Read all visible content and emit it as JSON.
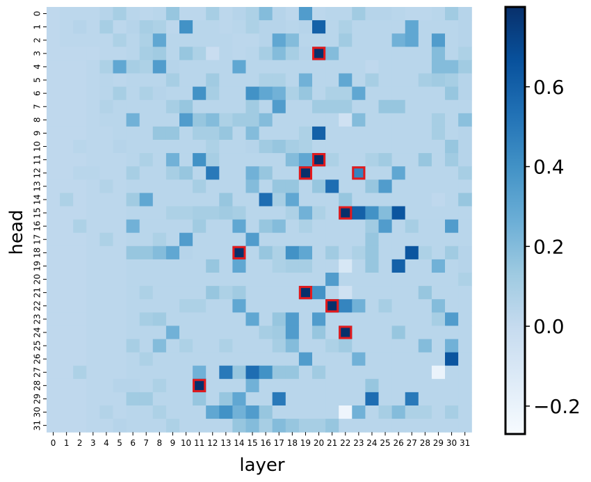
{
  "chart_data": {
    "type": "heatmap",
    "xlabel": "layer",
    "ylabel": "head",
    "x_ticks": [
      "0",
      "1",
      "2",
      "3",
      "4",
      "5",
      "6",
      "7",
      "8",
      "9",
      "10",
      "11",
      "12",
      "13",
      "14",
      "15",
      "16",
      "17",
      "18",
      "19",
      "20",
      "21",
      "22",
      "23",
      "24",
      "25",
      "26",
      "27",
      "28",
      "29",
      "30",
      "31"
    ],
    "y_ticks": [
      "0",
      "1",
      "2",
      "3",
      "4",
      "5",
      "6",
      "7",
      "8",
      "9",
      "10",
      "11",
      "12",
      "13",
      "14",
      "15",
      "16",
      "17",
      "18",
      "19",
      "20",
      "21",
      "22",
      "23",
      "24",
      "25",
      "26",
      "27",
      "28",
      "29",
      "30",
      "31"
    ],
    "colorscale": "Blues",
    "vmin": -0.27,
    "vmax": 0.8,
    "colorbar_ticks": [
      "−0.2",
      "0.0",
      "0.2",
      "0.4",
      "0.6"
    ],
    "colorbar_tick_values": [
      -0.2,
      0.0,
      0.2,
      0.4,
      0.6
    ],
    "values": [
      [
        0.02,
        0.03,
        0.03,
        0.03,
        0.05,
        0.1,
        0.04,
        0.03,
        0.04,
        0.15,
        0.03,
        0.03,
        0.1,
        0.03,
        0.05,
        0.08,
        0.2,
        0.05,
        0.03,
        0.35,
        0.03,
        0.04,
        0.04,
        0.12,
        0.05,
        0.05,
        0.04,
        0.03,
        0.03,
        0.04,
        0.12,
        0.05
      ],
      [
        0.02,
        0.03,
        0.05,
        0.03,
        0.1,
        0.03,
        0.05,
        0.1,
        0.08,
        0.03,
        0.4,
        0.04,
        0.04,
        0.03,
        0.04,
        0.08,
        0.05,
        0.05,
        0.04,
        0.05,
        0.6,
        0.04,
        0.08,
        0.04,
        0.04,
        0.04,
        0.04,
        0.3,
        0.04,
        0.04,
        0.04,
        0.05
      ],
      [
        0.02,
        0.03,
        0.03,
        0.03,
        0.03,
        0.08,
        0.04,
        0.08,
        0.3,
        0.04,
        0.04,
        0.04,
        0.04,
        0.04,
        0.03,
        0.03,
        0.05,
        0.3,
        0.2,
        0.04,
        0.04,
        0.04,
        0.12,
        0.04,
        0.04,
        0.04,
        0.25,
        0.3,
        0.04,
        0.35,
        0.04,
        0.05
      ],
      [
        0.02,
        0.02,
        0.02,
        0.02,
        0.03,
        0.03,
        0.04,
        0.1,
        0.12,
        0.04,
        0.15,
        0.08,
        -0.02,
        0.04,
        0.03,
        0.04,
        0.1,
        0.2,
        0.1,
        0.05,
        0.8,
        0.2,
        0.04,
        0.04,
        0.04,
        0.04,
        0.04,
        0.04,
        0.04,
        0.2,
        0.04,
        0.08
      ],
      [
        0.02,
        0.02,
        0.02,
        0.03,
        0.08,
        0.3,
        0.1,
        0.08,
        0.35,
        0.05,
        0.04,
        0.04,
        0.04,
        0.04,
        0.3,
        0.04,
        0.04,
        0.04,
        0.04,
        0.04,
        0.04,
        0.04,
        0.04,
        0.04,
        0.02,
        0.04,
        0.04,
        0.04,
        0.04,
        0.2,
        0.2,
        0.12
      ],
      [
        0.02,
        0.02,
        0.02,
        0.03,
        0.04,
        0.03,
        0.04,
        0.04,
        0.04,
        0.1,
        0.04,
        0.04,
        0.12,
        0.04,
        0.04,
        0.04,
        0.08,
        0.08,
        0.04,
        0.25,
        0.04,
        0.04,
        0.3,
        0.04,
        0.1,
        0.04,
        0.04,
        0.04,
        0.1,
        0.12,
        0.1,
        0.05
      ],
      [
        0.02,
        0.02,
        0.02,
        0.03,
        0.04,
        0.1,
        0.04,
        0.08,
        0.05,
        0.04,
        0.04,
        0.4,
        0.1,
        0.04,
        0.04,
        0.4,
        0.3,
        0.25,
        0.08,
        0.15,
        0.04,
        0.08,
        0.08,
        0.3,
        0.04,
        0.04,
        0.04,
        0.04,
        0.04,
        0.04,
        0.15,
        0.05
      ],
      [
        0.02,
        0.02,
        0.02,
        0.03,
        0.06,
        0.04,
        0.04,
        0.04,
        0.04,
        0.1,
        0.15,
        0.04,
        0.04,
        0.04,
        0.04,
        0.12,
        0.04,
        0.35,
        0.04,
        0.04,
        0.12,
        0.12,
        0.12,
        0.04,
        0.04,
        0.15,
        0.15,
        0.04,
        0.04,
        0.04,
        0.04,
        0.04
      ],
      [
        0.02,
        0.02,
        0.02,
        0.03,
        0.04,
        0.04,
        0.25,
        0.04,
        0.04,
        0.04,
        0.35,
        0.15,
        0.2,
        0.08,
        0.12,
        0.12,
        0.2,
        0.04,
        0.04,
        0.04,
        0.04,
        0.04,
        -0.05,
        0.2,
        0.04,
        0.04,
        0.04,
        0.04,
        0.04,
        0.1,
        0.04,
        0.18
      ],
      [
        0.02,
        0.02,
        0.02,
        0.03,
        0.03,
        0.04,
        0.04,
        0.04,
        0.15,
        0.15,
        0.04,
        0.1,
        0.1,
        0.15,
        0.04,
        0.2,
        0.04,
        0.04,
        0.04,
        0.08,
        0.6,
        0.04,
        0.04,
        0.04,
        0.04,
        0.04,
        0.04,
        0.04,
        0.04,
        0.1,
        0.04,
        0.05
      ],
      [
        0.02,
        0.02,
        0.04,
        0.03,
        0.03,
        0.05,
        0.04,
        0.04,
        0.04,
        0.04,
        0.04,
        0.04,
        0.08,
        0.04,
        0.04,
        0.05,
        0.12,
        0.15,
        0.1,
        0.08,
        0.04,
        0.04,
        0.04,
        0.04,
        0.04,
        0.04,
        0.04,
        0.04,
        0.04,
        0.04,
        0.15,
        0.05
      ],
      [
        0.02,
        0.02,
        0.02,
        0.03,
        0.03,
        0.03,
        0.04,
        0.08,
        0.04,
        0.25,
        0.04,
        0.4,
        0.1,
        0.04,
        0.04,
        0.04,
        0.04,
        0.04,
        0.2,
        0.3,
        0.8,
        0.08,
        0.04,
        0.04,
        0.08,
        0.12,
        0.04,
        0.04,
        0.15,
        0.04,
        0.12,
        0.05
      ],
      [
        0.02,
        0.02,
        0.04,
        0.04,
        0.03,
        0.03,
        0.1,
        0.04,
        0.04,
        0.1,
        0.15,
        0.04,
        0.5,
        0.04,
        0.04,
        0.25,
        0.15,
        0.04,
        0.04,
        0.8,
        0.04,
        0.04,
        0.04,
        0.45,
        0.04,
        0.04,
        0.3,
        0.04,
        0.04,
        0.04,
        0.04,
        0.1
      ],
      [
        0.02,
        0.02,
        0.02,
        0.03,
        0.06,
        0.03,
        0.04,
        0.04,
        0.04,
        0.04,
        0.04,
        0.1,
        0.04,
        0.04,
        0.04,
        0.2,
        0.04,
        0.15,
        0.15,
        0.04,
        0.15,
        0.55,
        0.04,
        0.04,
        0.15,
        0.35,
        0.04,
        0.04,
        0.04,
        0.04,
        0.04,
        0.04
      ],
      [
        0.02,
        0.08,
        0.02,
        0.03,
        0.03,
        0.03,
        0.12,
        0.3,
        0.04,
        0.04,
        0.04,
        0.04,
        0.04,
        0.15,
        0.04,
        0.04,
        0.55,
        0.1,
        0.3,
        0.04,
        0.04,
        0.04,
        0.15,
        0.04,
        0.04,
        0.04,
        0.04,
        0.04,
        0.04,
        0.02,
        0.04,
        0.15
      ],
      [
        0.02,
        0.02,
        0.02,
        0.03,
        0.03,
        0.03,
        0.04,
        0.04,
        0.04,
        0.08,
        0.08,
        0.1,
        0.1,
        0.12,
        0.1,
        0.04,
        0.04,
        0.04,
        0.08,
        0.25,
        0.08,
        0.04,
        0.8,
        0.6,
        0.4,
        0.2,
        0.65,
        0.04,
        0.04,
        0.04,
        0.04,
        0.04
      ],
      [
        0.02,
        0.02,
        0.08,
        0.03,
        0.03,
        0.03,
        0.25,
        0.04,
        0.04,
        0.04,
        0.04,
        0.12,
        0.04,
        0.04,
        0.3,
        0.04,
        0.15,
        0.2,
        0.04,
        0.08,
        0.04,
        0.04,
        0.04,
        0.04,
        0.12,
        0.35,
        0.04,
        0.1,
        0.04,
        0.04,
        0.35,
        0.04
      ],
      [
        0.02,
        0.02,
        0.02,
        0.03,
        0.08,
        0.03,
        0.04,
        0.04,
        0.08,
        0.04,
        0.35,
        0.04,
        0.04,
        0.04,
        0.04,
        0.35,
        0.04,
        0.04,
        0.04,
        0.04,
        0.04,
        0.04,
        0.04,
        0.04,
        0.15,
        0.04,
        0.04,
        0.04,
        0.04,
        0.04,
        0.04,
        0.04
      ],
      [
        0.02,
        0.02,
        0.02,
        0.03,
        0.03,
        0.03,
        0.15,
        0.15,
        0.2,
        0.3,
        0.05,
        0.04,
        0.04,
        0.04,
        0.8,
        0.04,
        0.15,
        0.08,
        0.4,
        0.3,
        0.04,
        0.12,
        0.04,
        0.08,
        0.15,
        0.04,
        0.04,
        0.65,
        0.08,
        0.04,
        0.12,
        0.05
      ],
      [
        0.02,
        0.02,
        0.02,
        0.03,
        0.03,
        0.03,
        0.04,
        0.04,
        0.04,
        0.04,
        0.04,
        0.04,
        0.15,
        0.04,
        0.3,
        0.04,
        0.04,
        0.08,
        0.1,
        0.1,
        0.04,
        0.04,
        -0.1,
        0.04,
        0.15,
        0.04,
        0.6,
        0.04,
        0.04,
        0.25,
        0.04,
        0.05
      ],
      [
        0.02,
        0.02,
        0.02,
        0.03,
        0.03,
        0.03,
        0.04,
        0.04,
        0.04,
        0.04,
        0.04,
        0.04,
        0.04,
        0.04,
        0.04,
        0.04,
        0.04,
        0.04,
        0.04,
        0.04,
        0.04,
        0.35,
        0.04,
        0.04,
        0.04,
        0.04,
        0.04,
        0.04,
        0.04,
        0.04,
        0.04,
        0.08
      ],
      [
        0.02,
        0.02,
        0.02,
        0.03,
        0.03,
        0.03,
        0.04,
        0.08,
        0.04,
        0.04,
        0.04,
        0.04,
        0.15,
        0.08,
        0.12,
        0.04,
        0.04,
        0.04,
        0.04,
        0.8,
        0.4,
        0.04,
        -0.05,
        0.04,
        0.04,
        0.04,
        0.04,
        0.04,
        0.15,
        0.04,
        0.04,
        0.04
      ],
      [
        0.02,
        0.02,
        0.02,
        0.03,
        0.03,
        0.03,
        0.04,
        0.04,
        0.04,
        0.04,
        0.08,
        0.08,
        0.04,
        0.04,
        0.3,
        0.04,
        0.04,
        0.04,
        0.04,
        0.04,
        0.04,
        0.8,
        0.45,
        0.25,
        0.04,
        0.1,
        0.04,
        0.04,
        0.04,
        0.2,
        0.04,
        0.04
      ],
      [
        0.02,
        0.02,
        0.02,
        0.03,
        0.03,
        0.03,
        0.04,
        0.1,
        0.12,
        0.04,
        0.04,
        0.04,
        0.04,
        0.04,
        0.04,
        0.3,
        0.04,
        0.15,
        0.35,
        0.04,
        0.35,
        0.04,
        0.04,
        0.04,
        0.04,
        0.04,
        0.04,
        0.04,
        0.04,
        0.1,
        0.35,
        0.04
      ],
      [
        0.02,
        0.02,
        0.02,
        0.03,
        0.03,
        0.03,
        0.04,
        0.04,
        0.04,
        0.25,
        0.04,
        0.04,
        0.04,
        0.04,
        0.04,
        0.04,
        0.1,
        0.12,
        0.35,
        0.04,
        0.15,
        0.04,
        0.8,
        0.04,
        0.04,
        0.04,
        0.15,
        0.04,
        0.04,
        0.04,
        0.04,
        0.04
      ],
      [
        0.02,
        0.02,
        0.02,
        0.03,
        0.03,
        0.03,
        0.1,
        0.04,
        0.2,
        0.04,
        0.08,
        0.04,
        0.04,
        0.08,
        0.04,
        0.04,
        0.04,
        0.1,
        0.2,
        0.04,
        0.04,
        0.08,
        0.12,
        0.04,
        0.04,
        0.04,
        0.04,
        0.04,
        0.2,
        0.04,
        0.25,
        0.04
      ],
      [
        0.02,
        0.02,
        0.02,
        0.03,
        0.03,
        0.03,
        0.04,
        0.08,
        0.04,
        0.04,
        0.04,
        0.04,
        0.04,
        0.04,
        0.04,
        0.04,
        0.04,
        0.04,
        0.04,
        0.35,
        0.04,
        0.04,
        0.04,
        0.25,
        0.04,
        0.04,
        0.04,
        0.04,
        0.04,
        0.04,
        0.65,
        0.04
      ],
      [
        0.02,
        0.02,
        0.08,
        0.03,
        0.03,
        0.03,
        0.04,
        0.04,
        0.04,
        0.04,
        0.04,
        0.25,
        0.04,
        0.5,
        0.15,
        0.55,
        0.4,
        0.15,
        0.15,
        0.04,
        0.12,
        0.04,
        0.04,
        0.04,
        0.04,
        0.04,
        0.04,
        0.04,
        0.04,
        -0.2,
        0.04,
        0.04
      ],
      [
        0.02,
        0.02,
        0.02,
        0.03,
        0.03,
        0.05,
        0.05,
        0.04,
        0.08,
        0.04,
        0.04,
        0.8,
        0.04,
        0.04,
        0.04,
        0.25,
        0.04,
        0.04,
        0.04,
        0.04,
        0.04,
        0.04,
        0.04,
        0.04,
        0.15,
        0.04,
        0.04,
        0.04,
        0.04,
        0.04,
        0.04,
        0.04
      ],
      [
        0.02,
        0.02,
        0.02,
        0.03,
        0.03,
        0.03,
        0.12,
        0.12,
        0.04,
        0.04,
        0.04,
        0.15,
        0.04,
        0.15,
        0.3,
        0.04,
        0.04,
        0.5,
        0.04,
        0.04,
        0.04,
        0.04,
        0.04,
        0.04,
        0.55,
        0.04,
        0.04,
        0.5,
        0.04,
        0.04,
        0.04,
        0.04
      ],
      [
        0.02,
        0.02,
        0.02,
        0.03,
        0.06,
        0.03,
        0.04,
        0.04,
        0.08,
        0.04,
        0.04,
        0.04,
        0.3,
        0.4,
        0.25,
        0.35,
        0.15,
        0.04,
        0.04,
        0.04,
        0.04,
        0.04,
        -0.22,
        0.25,
        0.04,
        0.1,
        0.2,
        0.08,
        0.08,
        0.04,
        0.1,
        0.04
      ],
      [
        0.02,
        0.02,
        0.02,
        0.03,
        0.03,
        0.05,
        0.04,
        0.04,
        0.04,
        0.08,
        0.04,
        0.04,
        0.04,
        0.04,
        0.15,
        0.2,
        0.1,
        0.2,
        0.15,
        0.1,
        0.1,
        0.15,
        0.04,
        0.04,
        0.04,
        0.04,
        0.04,
        0.04,
        0.04,
        0.04,
        0.04,
        0.04
      ]
    ],
    "highlighted_cells": [
      {
        "layer": 20,
        "head": 3
      },
      {
        "layer": 20,
        "head": 11
      },
      {
        "layer": 19,
        "head": 12
      },
      {
        "layer": 23,
        "head": 12
      },
      {
        "layer": 22,
        "head": 15
      },
      {
        "layer": 14,
        "head": 18
      },
      {
        "layer": 19,
        "head": 21
      },
      {
        "layer": 21,
        "head": 22
      },
      {
        "layer": 22,
        "head": 24
      },
      {
        "layer": 11,
        "head": 28
      }
    ],
    "highlight_color": "#e41a1c"
  }
}
